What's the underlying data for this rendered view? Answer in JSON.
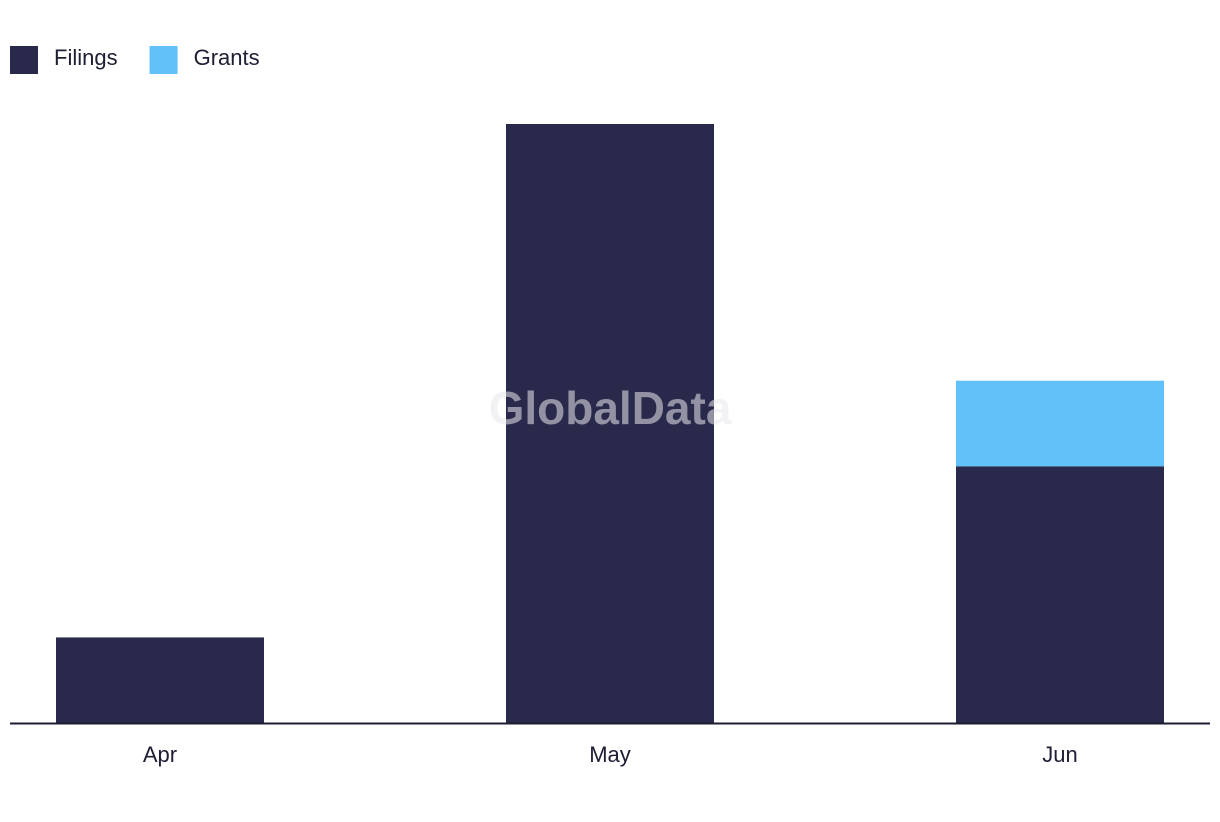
{
  "chart_data": {
    "type": "stacked-bar",
    "watermark": "GlobalData",
    "categories": [
      "Apr",
      "May",
      "Jun"
    ],
    "series": [
      {
        "name": "Filings",
        "color": "#29294b",
        "values": [
          1,
          7,
          3
        ]
      },
      {
        "name": "Grants",
        "color": "#62c1f8",
        "values": [
          0,
          0,
          1
        ]
      }
    ]
  }
}
